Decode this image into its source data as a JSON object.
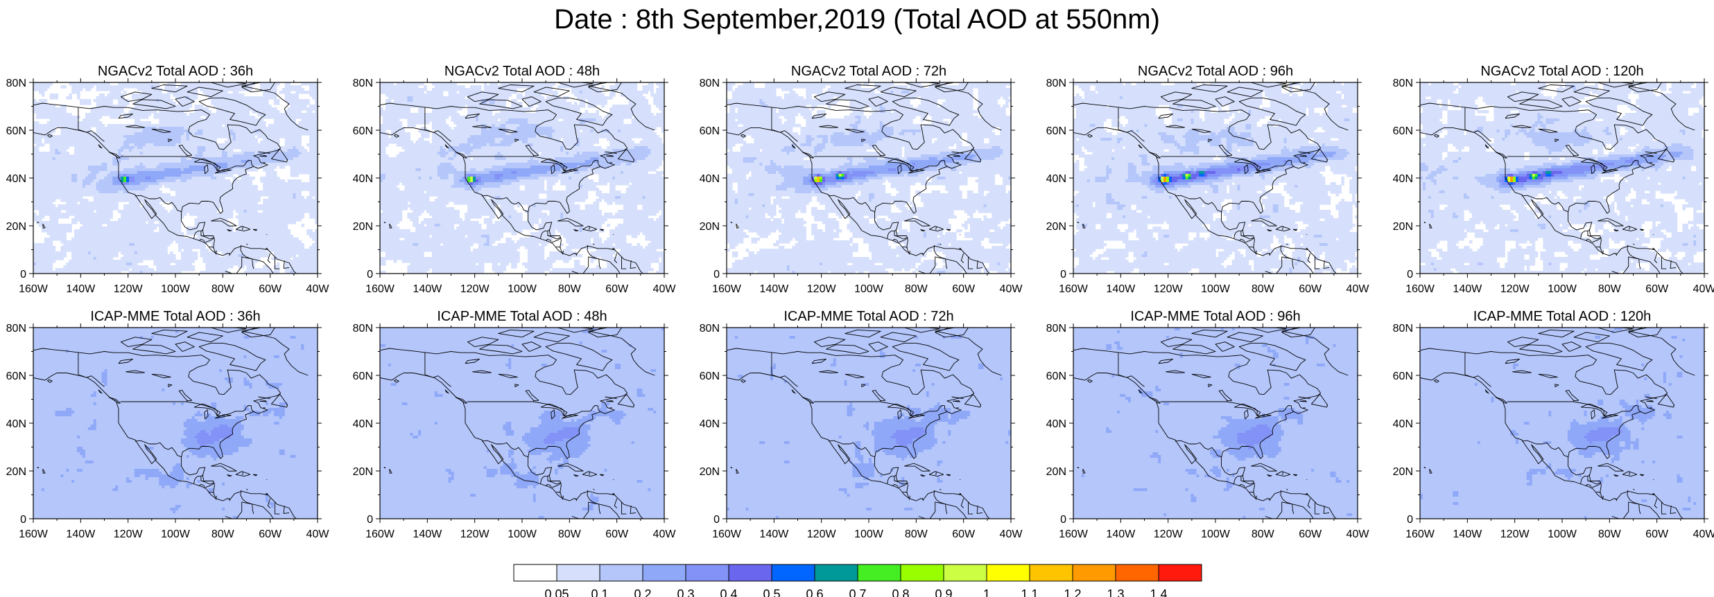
{
  "title": "Date : 8th September,2019 (Total AOD at 550nm)",
  "panels": [
    {
      "title": "NGACv2 Total AOD : 36h"
    },
    {
      "title": "NGACv2 Total AOD : 48h"
    },
    {
      "title": "NGACv2 Total AOD : 72h"
    },
    {
      "title": "NGACv2 Total AOD : 96h"
    },
    {
      "title": "NGACv2 Total AOD : 120h"
    },
    {
      "title": "ICAP-MME Total AOD : 36h"
    },
    {
      "title": "ICAP-MME Total AOD : 48h"
    },
    {
      "title": "ICAP-MME Total AOD : 72h"
    },
    {
      "title": "ICAP-MME Total AOD : 96h"
    },
    {
      "title": "ICAP-MME Total AOD : 120h"
    }
  ],
  "map": {
    "lon_range": [
      -160,
      -40
    ],
    "lat_range": [
      0,
      80
    ],
    "lon_ticks": [
      {
        "value": -160,
        "label": "160W"
      },
      {
        "value": -140,
        "label": "140W"
      },
      {
        "value": -120,
        "label": "120W"
      },
      {
        "value": -100,
        "label": "100W"
      },
      {
        "value": -80,
        "label": "80W"
      },
      {
        "value": -60,
        "label": "60W"
      },
      {
        "value": -40,
        "label": "40W"
      }
    ],
    "lat_ticks": [
      {
        "value": 0,
        "label": "0"
      },
      {
        "value": 20,
        "label": "20N"
      },
      {
        "value": 40,
        "label": "40N"
      },
      {
        "value": 60,
        "label": "60N"
      },
      {
        "value": 80,
        "label": "80N"
      }
    ]
  },
  "colorbar": {
    "colors": [
      "#ffffff",
      "#d6e0fc",
      "#b4c6fa",
      "#8fa8f8",
      "#8392f6",
      "#6a67ee",
      "#0066ff",
      "#009999",
      "#44ee22",
      "#99ff00",
      "#ccff44",
      "#ffff00",
      "#ffc400",
      "#ff9a00",
      "#ff6600",
      "#ff1a0d"
    ],
    "labels": [
      "0.05",
      "0.1",
      "0.2",
      "0.3",
      "0.4",
      "0.5",
      "0.6",
      "0.7",
      "0.8",
      "0.9",
      "1",
      "1.1",
      "1.2",
      "1.3",
      "1.4"
    ]
  }
}
